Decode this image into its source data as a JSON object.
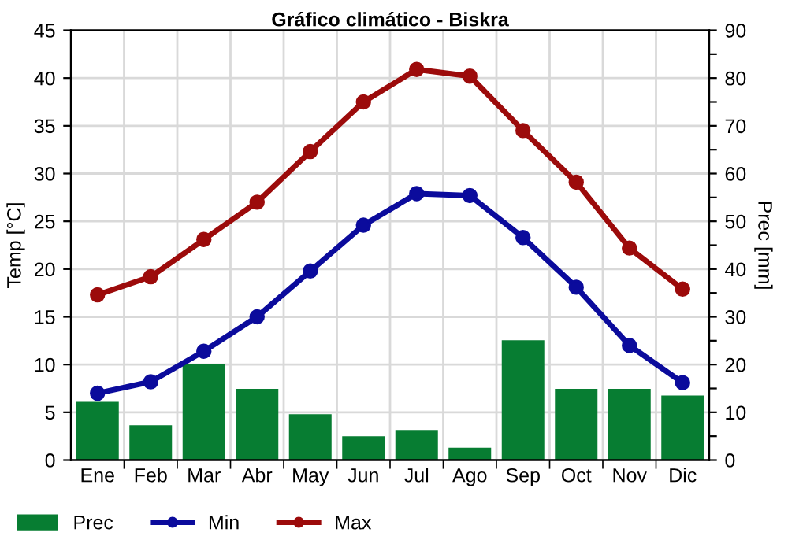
{
  "chart_data": {
    "type": "line",
    "title": "Gráfico climático - Biskra",
    "ylabel": "Temp [°C]",
    "y2label": "Prec [mm]",
    "categories": [
      "Ene",
      "Feb",
      "Mar",
      "Abr",
      "May",
      "Jun",
      "Jul",
      "Ago",
      "Sep",
      "Oct",
      "Nov",
      "Dic"
    ],
    "series": [
      {
        "name": "Prec",
        "type": "bar",
        "axis": "y2",
        "color": "#077d32",
        "values": [
          12.2,
          7.3,
          20.1,
          14.9,
          9.6,
          5,
          6.3,
          2.6,
          25.1,
          14.9,
          14.9,
          13.5
        ]
      },
      {
        "name": "Min",
        "color": "#0b0b9c",
        "values": [
          7.0,
          8.2,
          11.4,
          15.0,
          19.8,
          24.6,
          27.9,
          27.7,
          23.3,
          18.1,
          12.0,
          8.1
        ]
      },
      {
        "name": "Max",
        "color": "#9c0b0b",
        "values": [
          17.3,
          19.2,
          23.1,
          27.0,
          32.3,
          37.5,
          40.9,
          40.2,
          34.5,
          29.1,
          22.2,
          17.9
        ]
      }
    ],
    "ylim": [
      0,
      45
    ],
    "yticks": [
      0,
      5,
      10,
      15,
      20,
      25,
      30,
      35,
      40,
      45
    ],
    "y2lim": [
      0,
      90
    ],
    "y2ticks": [
      0,
      {
        "value": 5,
        "label": null
      },
      10,
      {
        "value": 15,
        "label": null
      },
      20,
      {
        "value": 25,
        "label": null
      },
      30,
      {
        "value": 35,
        "label": null
      },
      40,
      {
        "value": 45,
        "label": null
      },
      50,
      {
        "value": 55,
        "label": null
      },
      60,
      {
        "value": 65,
        "label": null
      },
      70,
      {
        "value": 75,
        "label": null
      },
      80,
      {
        "value": 85,
        "label": null
      },
      90
    ],
    "grid": true,
    "legend": "bottom left",
    "marker": "circle",
    "line_style": "solid"
  }
}
